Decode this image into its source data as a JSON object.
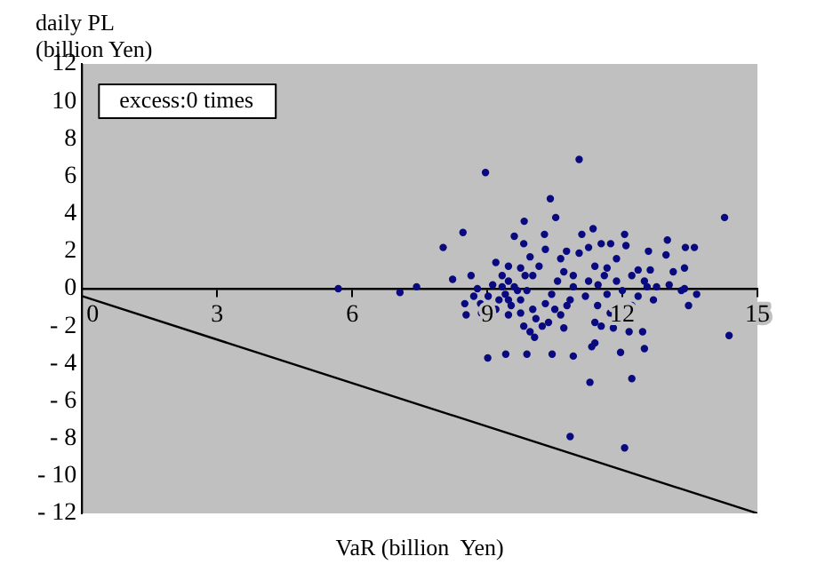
{
  "chart_data": {
    "type": "scatter",
    "xlabel": "VaR (billion  Yen)",
    "ylabel": "daily PL\n(billion Yen)",
    "annotations": [
      "excess:0 times"
    ],
    "xlim": [
      0,
      15
    ],
    "xticks": [
      0,
      3,
      6,
      9,
      12,
      15
    ],
    "ylim": [
      -12,
      12
    ],
    "yticks": [
      12,
      10,
      8,
      6,
      4,
      2,
      0,
      {
        "value": -2,
        "label": "- 2"
      },
      {
        "value": -4,
        "label": "- 4"
      },
      {
        "value": -6,
        "label": "- 6"
      },
      {
        "value": -8,
        "label": "- 8"
      },
      {
        "value": -10,
        "label": "- 10"
      },
      {
        "value": -12,
        "label": "- 12"
      }
    ],
    "grid": false,
    "legend": false,
    "marker": "circle",
    "series": [
      {
        "type": "scatter",
        "color": "#0a0a80",
        "x": [
          8.96,
          11.04,
          10.4,
          10.52,
          14.27,
          8.46,
          8.02,
          9.82,
          9.6,
          10.27,
          11.35,
          12.05,
          13.0,
          13.4,
          13.6,
          12.58,
          12.97,
          13.38,
          13.13,
          8.23,
          8.64,
          8.78,
          5.69,
          7.06,
          7.43,
          8.5,
          8.53,
          8.87,
          9.01,
          9.41,
          9.88,
          10.44,
          10.91,
          10.05,
          11.28,
          10.84,
          12.05,
          11.96,
          12.21,
          12.49,
          11.32,
          14.37,
          13.65,
          13.47,
          11.53,
          11.8,
          12.45,
          12.15,
          10.7,
          10.22,
          9.81,
          9.19,
          9.33,
          9.47,
          9.6,
          9.4,
          9.26,
          9.53,
          9.74,
          9.88,
          10.01,
          10.15,
          9.95,
          9.74,
          9.47,
          9.12,
          9.02,
          9.19,
          9.47,
          9.74,
          10.01,
          10.29,
          10.43,
          10.56,
          10.7,
          10.63,
          11.04,
          11.25,
          11.53,
          11.74,
          12.08,
          11.39,
          11.66,
          11.87,
          12.35,
          12.62,
          12.21,
          12.55,
          12.76,
          13.04,
          13.31,
          13.38,
          12.69,
          12.35,
          12.21,
          11.73,
          11.45,
          11.18,
          10.91,
          10.84,
          10.77,
          10.91,
          11.25,
          11.46,
          11.66,
          11.87,
          11.6,
          12.0,
          12.49,
          10.5,
          10.63,
          10.08,
          9.95,
          10.36,
          11.39,
          11.39,
          8.85,
          8.7,
          9.84,
          9.67,
          9.47,
          9.33,
          9.81,
          10.29,
          10.76,
          11.1
        ],
        "values": [
          6.2,
          6.9,
          4.8,
          3.8,
          3.8,
          3.0,
          2.2,
          3.6,
          2.8,
          2.9,
          3.2,
          2.9,
          2.6,
          2.2,
          2.2,
          2.0,
          1.8,
          1.1,
          0.9,
          0.5,
          0.7,
          0,
          0,
          -0.2,
          0.1,
          -0.8,
          -1.4,
          -1.3,
          -3.7,
          -3.5,
          -3.5,
          -3.5,
          -3.6,
          -2.6,
          -5.0,
          -7.9,
          -8.5,
          -3.4,
          -4.8,
          -3.2,
          -3.1,
          -2.5,
          -0.3,
          -0.9,
          -2.0,
          -2.1,
          -2.3,
          -2.3,
          -2.1,
          -2.0,
          -2.0,
          1.4,
          0.7,
          0.4,
          0.1,
          -0.3,
          -0.6,
          -0.9,
          -0.6,
          -0.1,
          0.7,
          1.2,
          1.7,
          1.1,
          1.2,
          0.2,
          -0.4,
          -1.1,
          -1.4,
          -1.3,
          -1.1,
          -0.8,
          -0.3,
          0.4,
          0.9,
          1.6,
          1.9,
          2.2,
          2.4,
          2.4,
          2.3,
          1.2,
          1.1,
          1.6,
          1.0,
          1.0,
          0.7,
          0.1,
          0.1,
          0.2,
          -0.1,
          0,
          -0.6,
          -0.4,
          -0.9,
          -1.3,
          -0.9,
          -0.4,
          0.1,
          -0.6,
          -0.9,
          0.7,
          0.4,
          0.2,
          -0.3,
          0.4,
          0.7,
          -0.1,
          0.4,
          -1.1,
          -1.4,
          -1.6,
          -2.3,
          -1.8,
          -1.8,
          -2.9,
          -0.8,
          -0.4,
          0.7,
          -0.1,
          -0.6,
          0.1,
          2.4,
          2.1,
          2.0,
          2.9
        ]
      },
      {
        "type": "line",
        "color": "#000000",
        "marker": "none",
        "line_style": "solid",
        "x": [
          0,
          15
        ],
        "values": [
          -0.4,
          -12
        ]
      }
    ]
  }
}
